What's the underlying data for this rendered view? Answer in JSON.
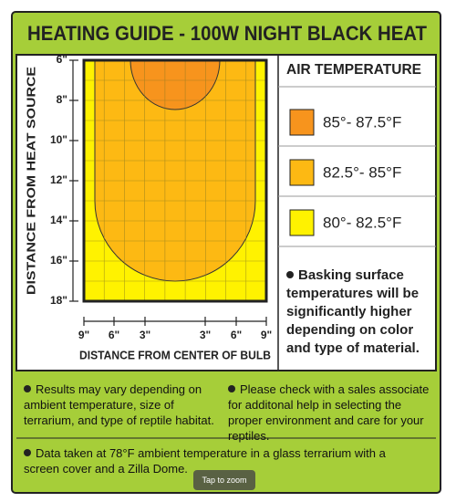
{
  "header": {
    "title": "HEATING GUIDE - 100W NIGHT BLACK HEAT"
  },
  "diagram": {
    "y_axis_label": "DISTANCE FROM HEAT SOURCE",
    "y_ticks": [
      "6\"",
      "8\"",
      "10\"",
      "12\"",
      "14\"",
      "16\"",
      "18\""
    ],
    "x_axis_label": "DISTANCE FROM CENTER OF BULB",
    "x_ticks": [
      "9\"",
      "6\"",
      "3\"",
      "3\"",
      "6\"",
      "9\""
    ]
  },
  "legend": {
    "title": "AIR TEMPERATURE",
    "items": [
      "85°- 87.5°F",
      "82.5°- 85°F",
      "80°- 82.5°F"
    ]
  },
  "side_note": "Basking surface temperatures will be significantly higher depending on color and type of material.",
  "notes": [
    "Results may vary depending on ambient temperature, size of terrarium, and type of reptile habitat.",
    "Please check with a sales associate for additonal help in selecting the proper environment and care for your reptiles.",
    "Data taken at 78°F ambient temperature in a glass terrarium with a screen cover and a Zilla Dome."
  ],
  "overlay": "Tap to zoom"
}
